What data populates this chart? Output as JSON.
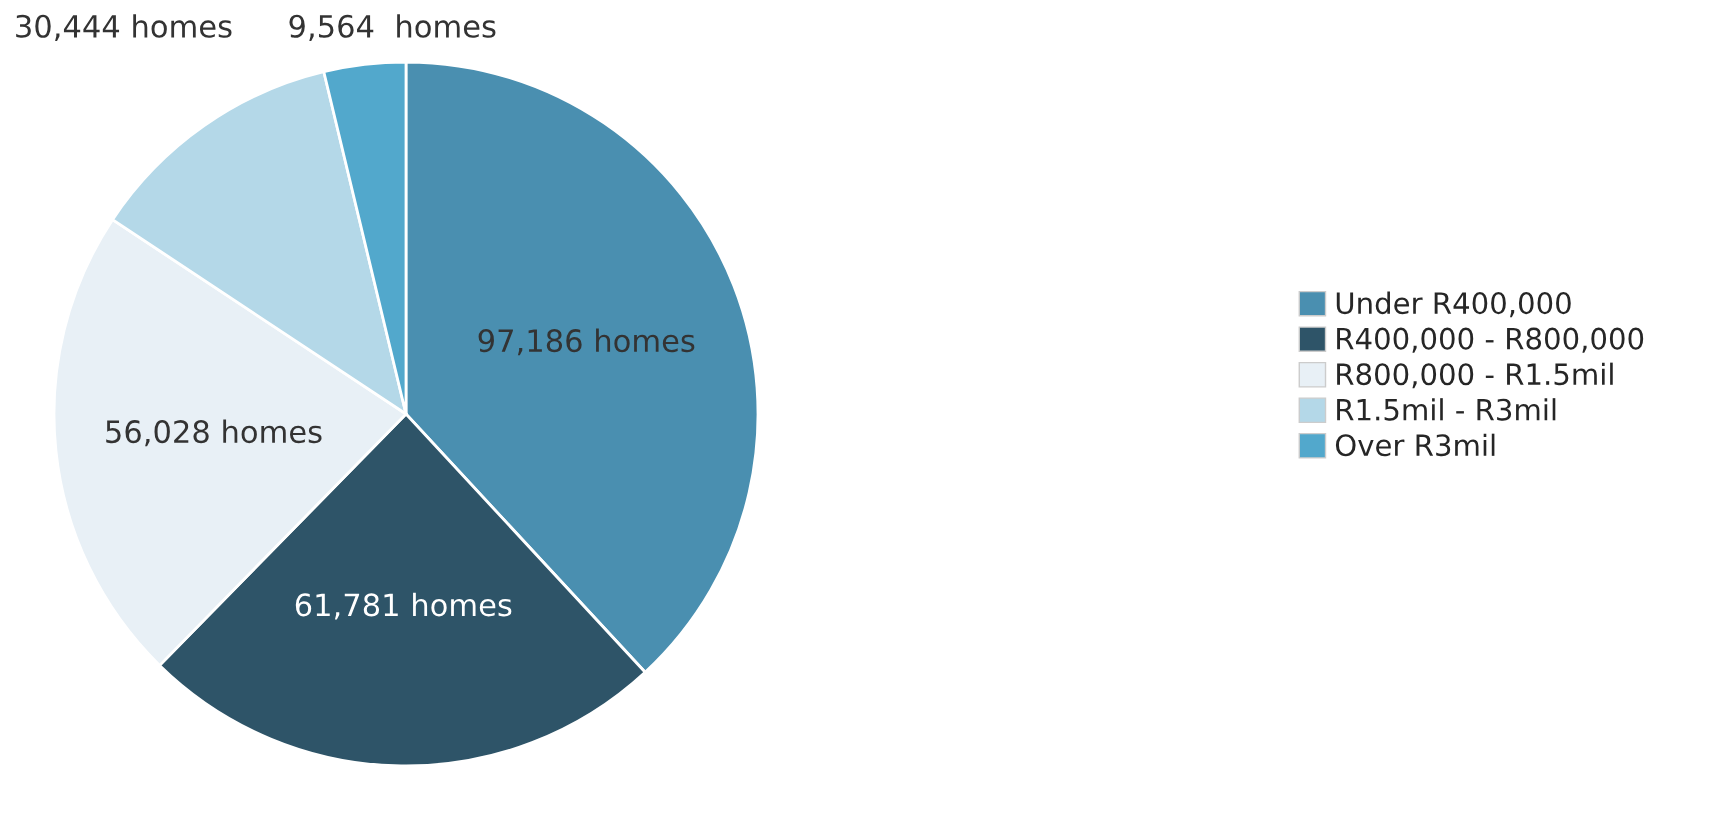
{
  "chart_data": {
    "type": "pie",
    "categories": [
      "Under R400,000",
      "R400,000 - R800,000",
      "R800,000 - R1.5mil",
      "R1.5mil - R3mil",
      "Over R3mil"
    ],
    "values": [
      97186,
      61781,
      56028,
      30444,
      9564
    ],
    "value_labels": [
      "97,186 homes",
      "61,781 homes",
      "56,028 homes",
      "30,444 homes",
      "9,564  homes"
    ],
    "colors": [
      "#4a8fb0",
      "#2e5468",
      "#e8f0f6",
      "#b4d8e8",
      "#52a8cc"
    ],
    "legend": "right"
  }
}
